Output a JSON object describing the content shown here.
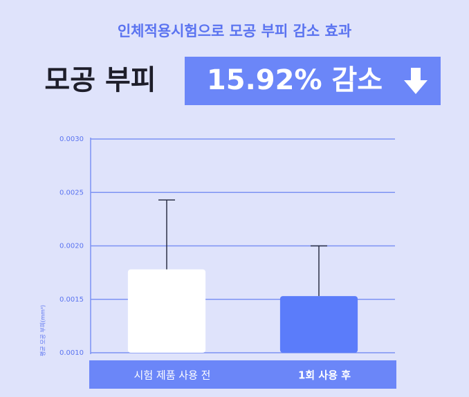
{
  "chart_data": {
    "type": "bar",
    "title": "인체적용시험으로 모공 부피 감소 효과",
    "headline": "모공 부피",
    "highlight": "15.92% 감소",
    "ylabel": "평균 모공 부피(mm³)",
    "categories": [
      "시험 제품 사용 전",
      "1회 사용 후"
    ],
    "values": [
      0.00178,
      0.00153
    ],
    "errors": [
      0.00065,
      0.00047
    ],
    "colors": [
      "#ffffff",
      "#5b7cfa"
    ],
    "ylim": [
      0.001,
      0.003
    ],
    "yticks": [
      {
        "value": 0.001,
        "label": "0.0010"
      },
      {
        "value": 0.0015,
        "label": "0.0015"
      },
      {
        "value": 0.002,
        "label": "0.0020"
      },
      {
        "value": 0.0025,
        "label": "0.0025"
      },
      {
        "value": 0.003,
        "label": "0.0030"
      }
    ],
    "grid": true
  }
}
